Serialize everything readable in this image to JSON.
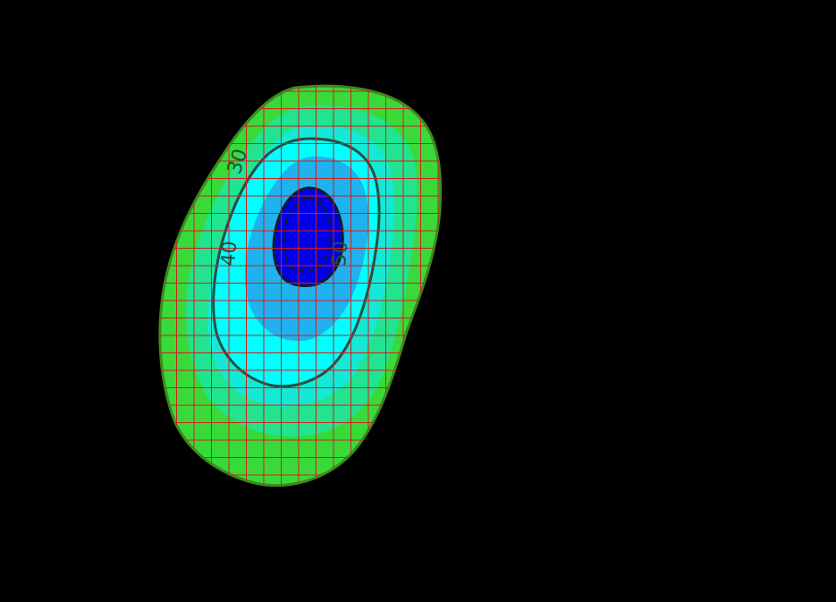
{
  "map": {
    "colors": {
      "background": "#000000",
      "band_outer": "#3ad93a",
      "band_2": "#22e38f",
      "band_3": "#16e8d6",
      "band_4": "#00ffff",
      "band_5": "#1fb2ef",
      "core": "#0000e6",
      "grid_line": "#d21e1e",
      "outer_stroke": "#3e8a1c",
      "contour_line": "#2c4e3e",
      "core_stroke": "#0f1a2a"
    },
    "contour_labels": {
      "c30": "30",
      "c40": "40",
      "c50": "50"
    }
  }
}
